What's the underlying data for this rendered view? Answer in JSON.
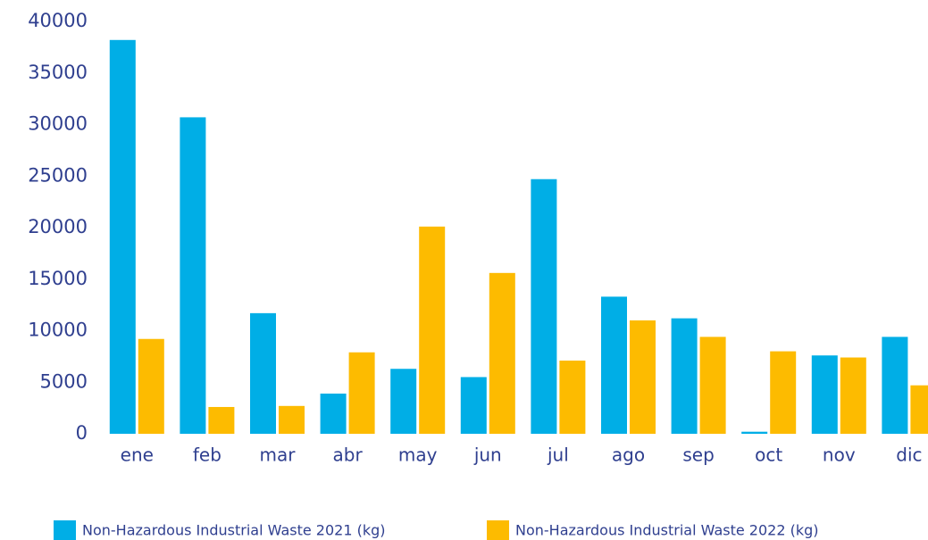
{
  "chart_data": {
    "type": "bar",
    "categories": [
      "ene",
      "feb",
      "mar",
      "abr",
      "may",
      "jun",
      "jul",
      "ago",
      "sep",
      "oct",
      "nov",
      "dic"
    ],
    "series": [
      {
        "name": "Non-Hazardous Industrial Waste 2021 (kg)",
        "color": "#00aee6",
        "values": [
          38200,
          30700,
          11700,
          3900,
          6300,
          5500,
          24700,
          13300,
          11200,
          200,
          7600,
          9400
        ]
      },
      {
        "name": "Non-Hazardous Industrial Waste 2022 (kg)",
        "color": "#fdbb00",
        "values": [
          9200,
          2600,
          2700,
          7900,
          20100,
          15600,
          7100,
          11000,
          9400,
          8000,
          7400,
          4700
        ]
      }
    ],
    "ylim": [
      0,
      40000
    ],
    "yticks": [
      0,
      5000,
      10000,
      15000,
      20000,
      25000,
      30000,
      35000,
      40000
    ],
    "grid": false,
    "legend": "bottom"
  }
}
